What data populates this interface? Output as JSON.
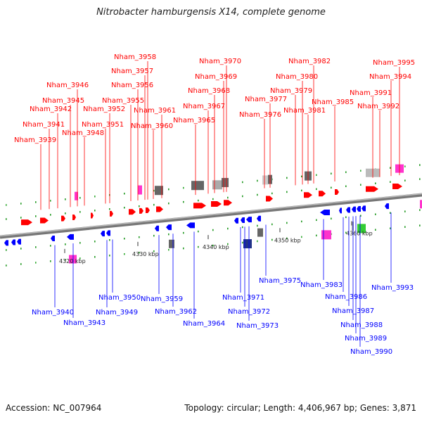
{
  "title": "Nitrobacter hamburgensis X14, complete genome",
  "footer": {
    "accession": "Accession: NC_007964",
    "stats": "Topology: circular; Length: 4,406,967 bp; Genes: 3,871"
  },
  "colors": {
    "forward": "#ff0000",
    "reverse": "#0000ff",
    "backbone": "#888888",
    "rna_pink": "#ff33cc",
    "pseudo_gray": "#666666",
    "green": "#33cc33"
  },
  "scale_ticks": [
    "4320 kbp",
    "4330 kbp",
    "4340 kbp",
    "4350 kbp",
    "4360 kbp"
  ],
  "forward_labels": [
    "Nham_3939",
    "Nham_3941",
    "Nham_3942",
    "Nham_3945",
    "Nham_3946",
    "Nham_3948",
    "Nham_3951",
    "Nham_3952",
    "Nham_3955",
    "Nham_3956",
    "Nham_3957",
    "Nham_3958",
    "Nham_3960",
    "Nham_3961",
    "Nham_3965",
    "Nham_3967",
    "Nham_3968",
    "Nham_3969",
    "Nham_3970",
    "Nham_3976",
    "Nham_3977",
    "Nham_3979",
    "Nham_3980",
    "Nham_3981",
    "Nham_3982",
    "Nham_3985",
    "Nham_3991",
    "Nham_3992",
    "Nham_3994",
    "Nham_3995"
  ],
  "reverse_labels": [
    "Nham_3940",
    "Nham_3943",
    "Nham_3949",
    "Nham_3950",
    "Nham_3959",
    "Nham_3962",
    "Nham_3964",
    "Nham_3971",
    "Nham_3972",
    "Nham_3973",
    "Nham_3975",
    "Nham_3983",
    "Nham_3986",
    "Nham_3987",
    "Nham_3988",
    "Nham_3989",
    "Nham_3990",
    "Nham_3993"
  ]
}
